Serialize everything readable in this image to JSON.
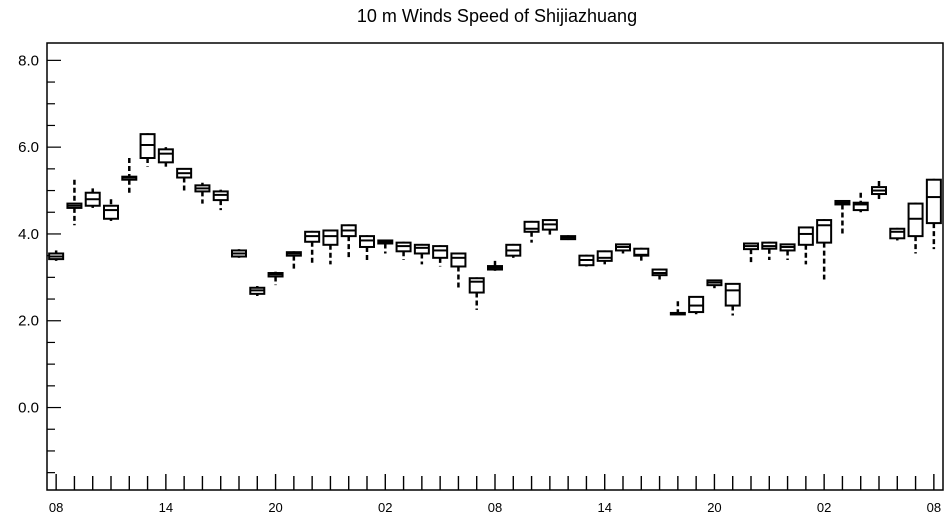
{
  "chart_data": {
    "type": "boxplot",
    "title": "10 m Winds Speed of Shijiazhuang",
    "xlabel": "",
    "ylabel": "",
    "ylim": [
      -1.9,
      8.4
    ],
    "yticks": [
      0.0,
      2.0,
      4.0,
      6.0,
      8.0
    ],
    "ytick_labels": [
      "0.0",
      "2.0",
      "4.0",
      "6.0",
      "8.0"
    ],
    "yminor_step": 0.5,
    "xlim": [
      -0.5,
      48.5
    ],
    "xticks": [
      0,
      6,
      12,
      18,
      24,
      30,
      36,
      42,
      48
    ],
    "xtick_labels": [
      "08",
      "14",
      "20",
      "02",
      "08",
      "14",
      "20",
      "02",
      "08"
    ],
    "grid": false,
    "boxes": [
      {
        "x": 0,
        "min": 3.38,
        "q1": 3.42,
        "median": 3.48,
        "q3": 3.55,
        "max": 3.62
      },
      {
        "x": 1,
        "min": 4.2,
        "q1": 4.6,
        "median": 4.65,
        "q3": 4.7,
        "max": 5.25
      },
      {
        "x": 2,
        "min": 4.6,
        "q1": 4.65,
        "median": 4.8,
        "q3": 4.95,
        "max": 5.05
      },
      {
        "x": 3,
        "min": 4.3,
        "q1": 4.35,
        "median": 4.55,
        "q3": 4.65,
        "max": 4.8
      },
      {
        "x": 4,
        "min": 4.95,
        "q1": 5.25,
        "median": 5.3,
        "q3": 5.32,
        "max": 5.75
      },
      {
        "x": 5,
        "min": 5.55,
        "q1": 5.75,
        "median": 6.05,
        "q3": 6.3,
        "max": 6.32
      },
      {
        "x": 6,
        "min": 5.55,
        "q1": 5.65,
        "median": 5.85,
        "q3": 5.95,
        "max": 6.0
      },
      {
        "x": 7,
        "min": 5.0,
        "q1": 5.3,
        "median": 5.4,
        "q3": 5.5,
        "max": 5.52
      },
      {
        "x": 8,
        "min": 4.7,
        "q1": 4.98,
        "median": 5.05,
        "q3": 5.12,
        "max": 5.18
      },
      {
        "x": 9,
        "min": 4.55,
        "q1": 4.78,
        "median": 4.9,
        "q3": 4.98,
        "max": 5.02
      },
      {
        "x": 10,
        "min": 3.45,
        "q1": 3.48,
        "median": 3.55,
        "q3": 3.62,
        "max": 3.65
      },
      {
        "x": 11,
        "min": 2.57,
        "q1": 2.62,
        "median": 2.7,
        "q3": 2.76,
        "max": 2.8
      },
      {
        "x": 12,
        "min": 2.82,
        "q1": 3.02,
        "median": 3.07,
        "q3": 3.1,
        "max": 3.13
      },
      {
        "x": 13,
        "min": 3.2,
        "q1": 3.5,
        "median": 3.55,
        "q3": 3.58,
        "max": 3.6
      },
      {
        "x": 14,
        "min": 3.3,
        "q1": 3.82,
        "median": 3.95,
        "q3": 4.05,
        "max": 4.07
      },
      {
        "x": 15,
        "min": 3.3,
        "q1": 3.75,
        "median": 3.95,
        "q3": 4.08,
        "max": 4.1
      },
      {
        "x": 16,
        "min": 3.45,
        "q1": 3.95,
        "median": 4.08,
        "q3": 4.2,
        "max": 4.22
      },
      {
        "x": 17,
        "min": 3.4,
        "q1": 3.7,
        "median": 3.85,
        "q3": 3.95,
        "max": 3.97
      },
      {
        "x": 18,
        "min": 3.55,
        "q1": 3.78,
        "median": 3.82,
        "q3": 3.85,
        "max": 3.87
      },
      {
        "x": 19,
        "min": 3.4,
        "q1": 3.6,
        "median": 3.72,
        "q3": 3.8,
        "max": 3.82
      },
      {
        "x": 20,
        "min": 3.3,
        "q1": 3.55,
        "median": 3.68,
        "q3": 3.75,
        "max": 3.77
      },
      {
        "x": 21,
        "min": 3.25,
        "q1": 3.45,
        "median": 3.62,
        "q3": 3.72,
        "max": 3.74
      },
      {
        "x": 22,
        "min": 2.75,
        "q1": 3.25,
        "median": 3.45,
        "q3": 3.55,
        "max": 3.57
      },
      {
        "x": 23,
        "min": 2.25,
        "q1": 2.65,
        "median": 2.9,
        "q3": 2.98,
        "max": 3.0
      },
      {
        "x": 24,
        "min": 3.15,
        "q1": 3.18,
        "median": 3.22,
        "q3": 3.26,
        "max": 3.38
      },
      {
        "x": 25,
        "min": 3.45,
        "q1": 3.5,
        "median": 3.62,
        "q3": 3.75,
        "max": 3.77
      },
      {
        "x": 26,
        "min": 3.8,
        "q1": 4.05,
        "median": 4.12,
        "q3": 4.28,
        "max": 4.3
      },
      {
        "x": 27,
        "min": 3.95,
        "q1": 4.1,
        "median": 4.22,
        "q3": 4.32,
        "max": 4.34
      },
      {
        "x": 28,
        "min": 3.86,
        "q1": 3.88,
        "median": 3.92,
        "q3": 3.95,
        "max": 3.97
      },
      {
        "x": 29,
        "min": 3.25,
        "q1": 3.28,
        "median": 3.4,
        "q3": 3.5,
        "max": 3.52
      },
      {
        "x": 30,
        "min": 3.3,
        "q1": 3.38,
        "median": 3.45,
        "q3": 3.6,
        "max": 3.62
      },
      {
        "x": 31,
        "min": 3.55,
        "q1": 3.62,
        "median": 3.7,
        "q3": 3.76,
        "max": 3.78
      },
      {
        "x": 32,
        "min": 3.35,
        "q1": 3.5,
        "median": 3.52,
        "q3": 3.66,
        "max": 3.68
      },
      {
        "x": 33,
        "min": 2.95,
        "q1": 3.05,
        "median": 3.1,
        "q3": 3.18,
        "max": 3.2
      },
      {
        "x": 34,
        "min": 2.15,
        "q1": 2.16,
        "median": 2.17,
        "q3": 2.18,
        "max": 2.45
      },
      {
        "x": 35,
        "min": 2.15,
        "q1": 2.2,
        "median": 2.35,
        "q3": 2.55,
        "max": 2.57
      },
      {
        "x": 36,
        "min": 2.75,
        "q1": 2.82,
        "median": 2.88,
        "q3": 2.93,
        "max": 2.95
      },
      {
        "x": 37,
        "min": 2.12,
        "q1": 2.35,
        "median": 2.7,
        "q3": 2.85,
        "max": 2.87
      },
      {
        "x": 38,
        "min": 3.35,
        "q1": 3.65,
        "median": 3.72,
        "q3": 3.78,
        "max": 3.8
      },
      {
        "x": 39,
        "min": 3.4,
        "q1": 3.66,
        "median": 3.72,
        "q3": 3.8,
        "max": 3.82
      },
      {
        "x": 40,
        "min": 3.4,
        "q1": 3.62,
        "median": 3.7,
        "q3": 3.76,
        "max": 3.78
      },
      {
        "x": 41,
        "min": 3.3,
        "q1": 3.75,
        "median": 4.0,
        "q3": 4.15,
        "max": 4.17
      },
      {
        "x": 42,
        "min": 2.95,
        "q1": 3.8,
        "median": 4.2,
        "q3": 4.32,
        "max": 4.34
      },
      {
        "x": 43,
        "min": 3.95,
        "q1": 4.68,
        "median": 4.72,
        "q3": 4.76,
        "max": 4.78
      },
      {
        "x": 44,
        "min": 4.5,
        "q1": 4.55,
        "median": 4.68,
        "q3": 4.72,
        "max": 4.95
      },
      {
        "x": 45,
        "min": 4.75,
        "q1": 4.92,
        "median": 5.0,
        "q3": 5.08,
        "max": 5.22
      },
      {
        "x": 46,
        "min": 3.85,
        "q1": 3.9,
        "median": 4.05,
        "q3": 4.12,
        "max": 4.14
      },
      {
        "x": 47,
        "min": 3.55,
        "q1": 3.95,
        "median": 4.35,
        "q3": 4.7,
        "max": 4.72
      },
      {
        "x": 48,
        "min": 3.65,
        "q1": 4.25,
        "median": 4.85,
        "q3": 5.25,
        "max": 5.27
      }
    ]
  }
}
